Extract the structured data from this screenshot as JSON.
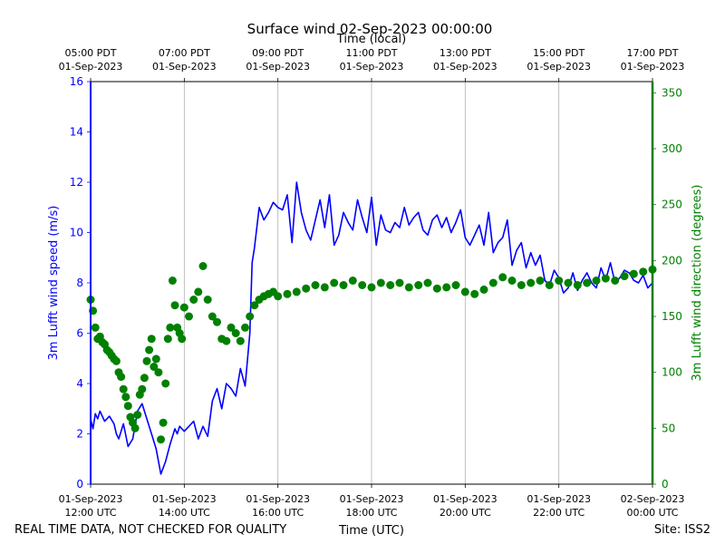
{
  "chart_data": {
    "type": "line+scatter",
    "title": "Surface wind 02-Sep-2023 00:00:00",
    "top_axis_label": "Time (local)",
    "xlabel": "Time (UTC)",
    "ylabel_left": "3m Lufft wind speed (m/s)",
    "ylabel_right": "3m Lufft wind direction (degrees)",
    "footer_left": "REAL TIME DATA, NOT CHECKED FOR QUALITY",
    "footer_right": "Site: ISS2",
    "x_range_hours": [
      12,
      24
    ],
    "ylim_left": [
      0,
      16
    ],
    "ylim_right": [
      0,
      360
    ],
    "bottom_ticks": [
      {
        "h": 12,
        "l1": "01-Sep-2023",
        "l2": "12:00 UTC"
      },
      {
        "h": 14,
        "l1": "01-Sep-2023",
        "l2": "14:00 UTC"
      },
      {
        "h": 16,
        "l1": "01-Sep-2023",
        "l2": "16:00 UTC"
      },
      {
        "h": 18,
        "l1": "01-Sep-2023",
        "l2": "18:00 UTC"
      },
      {
        "h": 20,
        "l1": "01-Sep-2023",
        "l2": "20:00 UTC"
      },
      {
        "h": 22,
        "l1": "01-Sep-2023",
        "l2": "22:00 UTC"
      },
      {
        "h": 24,
        "l1": "02-Sep-2023",
        "l2": "00:00 UTC"
      }
    ],
    "top_ticks": [
      {
        "h": 12,
        "l1": "05:00 PDT",
        "l2": "01-Sep-2023"
      },
      {
        "h": 14,
        "l1": "07:00 PDT",
        "l2": "01-Sep-2023"
      },
      {
        "h": 16,
        "l1": "09:00 PDT",
        "l2": "01-Sep-2023"
      },
      {
        "h": 18,
        "l1": "11:00 PDT",
        "l2": "01-Sep-2023"
      },
      {
        "h": 20,
        "l1": "13:00 PDT",
        "l2": "01-Sep-2023"
      },
      {
        "h": 22,
        "l1": "15:00 PDT",
        "l2": "01-Sep-2023"
      },
      {
        "h": 24,
        "l1": "17:00 PDT",
        "l2": "01-Sep-2023"
      }
    ],
    "left_ticks": [
      0,
      2,
      4,
      6,
      8,
      10,
      12,
      14,
      16
    ],
    "right_ticks": [
      0,
      50,
      100,
      150,
      200,
      250,
      300,
      350
    ],
    "series": [
      {
        "name": "3m Lufft wind speed",
        "kind": "line",
        "axis": "left",
        "color": "#0000ff",
        "x": [
          12.0,
          12.05,
          12.1,
          12.15,
          12.2,
          12.3,
          12.4,
          12.5,
          12.55,
          12.6,
          12.7,
          12.8,
          12.9,
          13.0,
          13.1,
          13.2,
          13.3,
          13.4,
          13.5,
          13.6,
          13.7,
          13.8,
          13.85,
          13.9,
          14.0,
          14.1,
          14.2,
          14.3,
          14.4,
          14.5,
          14.6,
          14.7,
          14.8,
          14.9,
          15.0,
          15.1,
          15.2,
          15.3,
          15.4,
          15.45,
          15.5,
          15.6,
          15.7,
          15.8,
          15.9,
          16.0,
          16.1,
          16.2,
          16.3,
          16.4,
          16.5,
          16.6,
          16.7,
          16.8,
          16.9,
          17.0,
          17.1,
          17.2,
          17.3,
          17.4,
          17.5,
          17.6,
          17.7,
          17.8,
          17.9,
          18.0,
          18.1,
          18.2,
          18.3,
          18.4,
          18.5,
          18.6,
          18.7,
          18.8,
          18.9,
          19.0,
          19.1,
          19.2,
          19.3,
          19.4,
          19.5,
          19.6,
          19.7,
          19.8,
          19.9,
          20.0,
          20.1,
          20.2,
          20.3,
          20.4,
          20.5,
          20.6,
          20.7,
          20.8,
          20.9,
          21.0,
          21.1,
          21.2,
          21.3,
          21.4,
          21.5,
          21.6,
          21.7,
          21.8,
          21.9,
          22.0,
          22.1,
          22.2,
          22.3,
          22.4,
          22.5,
          22.6,
          22.7,
          22.8,
          22.9,
          23.0,
          23.1,
          23.2,
          23.3,
          23.4,
          23.5,
          23.6,
          23.7,
          23.8,
          23.9,
          24.0
        ],
        "values": [
          2.6,
          2.2,
          2.8,
          2.6,
          2.9,
          2.5,
          2.7,
          2.4,
          2.0,
          1.8,
          2.4,
          1.5,
          1.8,
          2.9,
          3.2,
          2.6,
          2.0,
          1.4,
          0.4,
          0.9,
          1.6,
          2.2,
          2.0,
          2.3,
          2.1,
          2.3,
          2.5,
          1.8,
          2.3,
          1.9,
          3.3,
          3.8,
          3.0,
          4.0,
          3.8,
          3.5,
          4.6,
          3.9,
          6.0,
          8.8,
          9.4,
          11.0,
          10.5,
          10.8,
          11.2,
          11.0,
          10.9,
          11.5,
          9.6,
          12.0,
          10.8,
          10.1,
          9.7,
          10.5,
          11.3,
          10.2,
          11.5,
          9.5,
          9.9,
          10.8,
          10.4,
          10.1,
          11.3,
          10.6,
          10.0,
          11.4,
          9.5,
          10.7,
          10.1,
          10.0,
          10.4,
          10.2,
          11.0,
          10.3,
          10.6,
          10.8,
          10.1,
          9.9,
          10.5,
          10.7,
          10.2,
          10.6,
          10.0,
          10.4,
          10.9,
          9.8,
          9.5,
          9.9,
          10.3,
          9.5,
          10.8,
          9.2,
          9.6,
          9.8,
          10.5,
          8.7,
          9.3,
          9.6,
          8.6,
          9.2,
          8.7,
          9.1,
          8.1,
          7.9,
          8.5,
          8.2,
          7.6,
          7.8,
          8.4,
          7.7,
          8.1,
          8.4,
          8.0,
          7.8,
          8.6,
          8.1,
          8.8,
          8.0,
          8.2,
          8.5,
          8.4,
          8.1,
          8.0,
          8.3,
          7.8,
          8.0
        ]
      },
      {
        "name": "3m Lufft wind direction",
        "kind": "scatter",
        "axis": "right",
        "color": "#008000",
        "x": [
          12.0,
          12.05,
          12.1,
          12.15,
          12.2,
          12.25,
          12.3,
          12.35,
          12.4,
          12.45,
          12.5,
          12.55,
          12.6,
          12.65,
          12.7,
          12.75,
          12.8,
          12.85,
          12.9,
          12.95,
          13.0,
          13.05,
          13.1,
          13.15,
          13.2,
          13.25,
          13.3,
          13.35,
          13.4,
          13.45,
          13.5,
          13.55,
          13.6,
          13.65,
          13.7,
          13.75,
          13.8,
          13.85,
          13.9,
          13.95,
          14.0,
          14.1,
          14.2,
          14.3,
          14.4,
          14.5,
          14.6,
          14.7,
          14.8,
          14.9,
          15.0,
          15.1,
          15.2,
          15.3,
          15.4,
          15.5,
          15.6,
          15.7,
          15.8,
          15.9,
          16.0,
          16.2,
          16.4,
          16.6,
          16.8,
          17.0,
          17.2,
          17.4,
          17.6,
          17.8,
          18.0,
          18.2,
          18.4,
          18.6,
          18.8,
          19.0,
          19.2,
          19.4,
          19.6,
          19.8,
          20.0,
          20.2,
          20.4,
          20.6,
          20.8,
          21.0,
          21.2,
          21.4,
          21.6,
          21.8,
          22.0,
          22.2,
          22.4,
          22.6,
          22.8,
          23.0,
          23.2,
          23.4,
          23.6,
          23.8,
          24.0
        ],
        "values": [
          165,
          155,
          140,
          130,
          132,
          127,
          125,
          120,
          118,
          115,
          112,
          110,
          100,
          96,
          85,
          78,
          70,
          60,
          55,
          50,
          62,
          80,
          85,
          95,
          110,
          120,
          130,
          105,
          112,
          100,
          40,
          55,
          90,
          130,
          140,
          182,
          160,
          140,
          135,
          130,
          158,
          150,
          165,
          172,
          195,
          165,
          150,
          145,
          130,
          128,
          140,
          135,
          128,
          140,
          150,
          160,
          165,
          168,
          170,
          172,
          168,
          170,
          172,
          175,
          178,
          176,
          180,
          178,
          182,
          178,
          176,
          180,
          178,
          180,
          176,
          178,
          180,
          175,
          176,
          178,
          172,
          170,
          174,
          180,
          185,
          182,
          178,
          180,
          182,
          178,
          182,
          180,
          178,
          180,
          182,
          184,
          182,
          186,
          188,
          190,
          192
        ]
      }
    ]
  }
}
